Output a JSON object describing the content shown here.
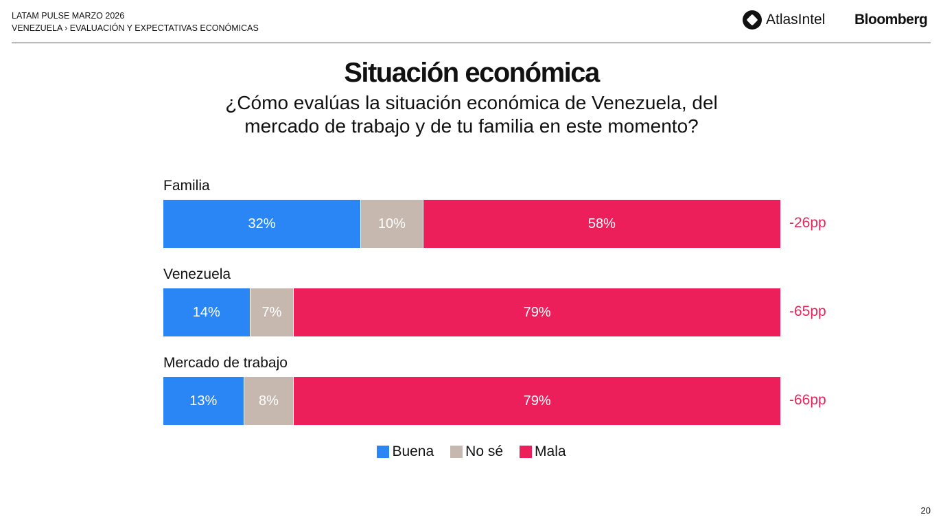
{
  "header": {
    "line1": "LATAM PULSE MARZO 2026",
    "line2": "VENEZUELA › EVALUACIÓN Y EXPECTATIVAS ECONÓMICAS",
    "brand1": "AtlasIntel",
    "brand2": "Bloomberg"
  },
  "page_number": "20",
  "chart_data": {
    "type": "bar",
    "stacked": true,
    "orientation": "horizontal",
    "title": "Situación económica",
    "subtitle_line1": "¿Cómo evalúas la situación económica de Venezuela, del",
    "subtitle_line2": "mercado de trabajo y de tu familia en este momento?",
    "categories": [
      "Familia",
      "Venezuela",
      "Mercado de trabajo"
    ],
    "series": [
      {
        "name": "Buena",
        "color": "#2a86f5",
        "values": [
          32,
          14,
          13
        ]
      },
      {
        "name": "No sé",
        "color": "#c6b8ae",
        "values": [
          10,
          7,
          8
        ]
      },
      {
        "name": "Mala",
        "color": "#ec1f5b",
        "values": [
          58,
          79,
          79
        ]
      }
    ],
    "net": [
      "-26pp",
      "-65pp",
      "-66pp"
    ],
    "legend": "bottom-center"
  }
}
